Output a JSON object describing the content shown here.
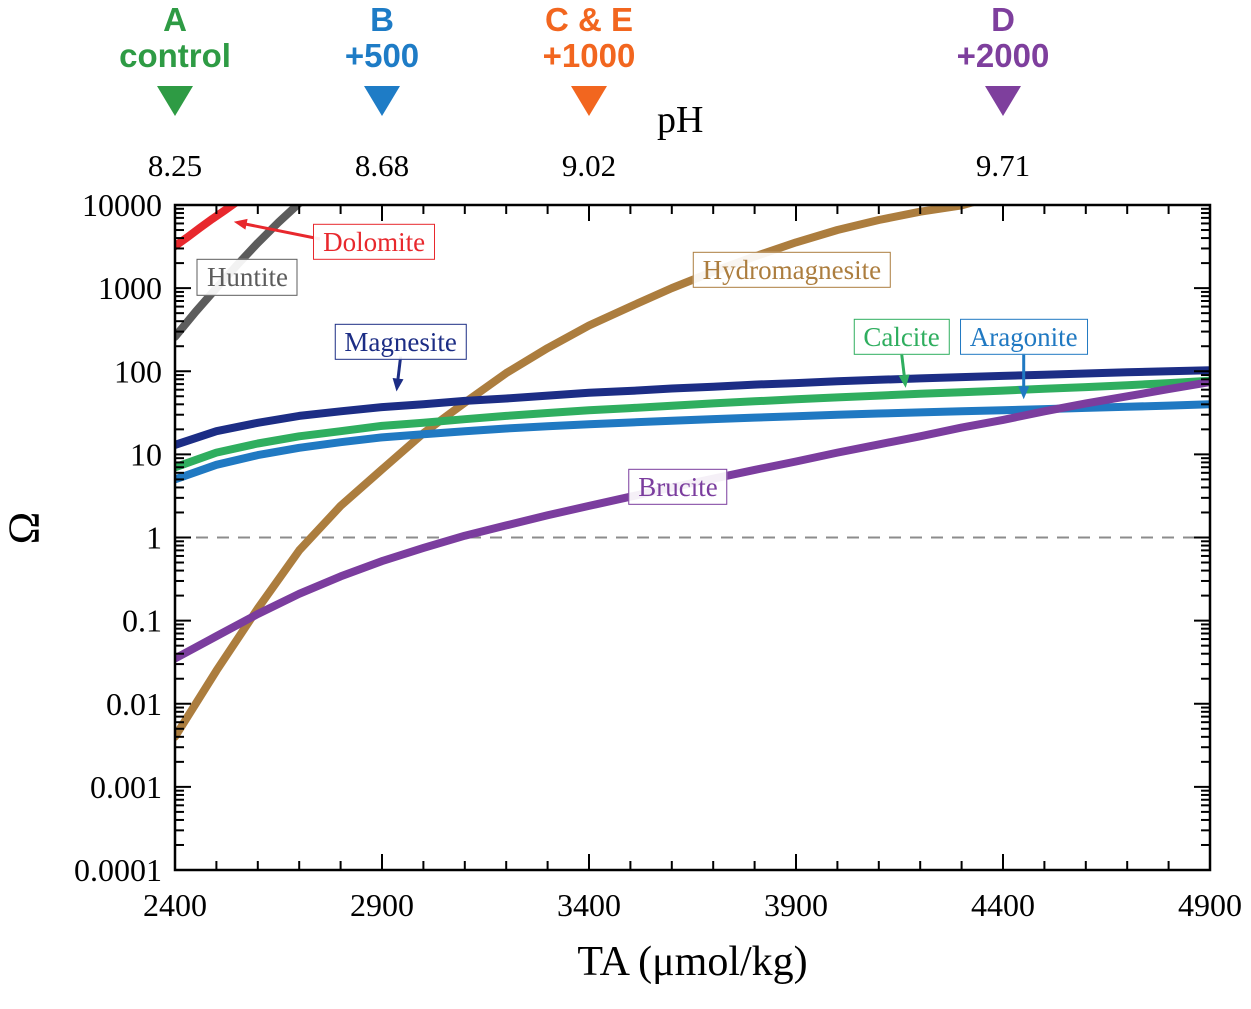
{
  "header": {
    "ph_axis_label": "pH",
    "treatments": [
      {
        "id": "a",
        "line1": "A",
        "line2": "control",
        "ta": 2400,
        "ph": "8.25",
        "color": "#2e9b44"
      },
      {
        "id": "b",
        "line1": "B",
        "line2": "+500",
        "ta": 2900,
        "ph": "8.68",
        "color": "#1e7cc6"
      },
      {
        "id": "ce",
        "line1": "C & E",
        "line2": "+1000",
        "ta": 3400,
        "ph": "9.02",
        "color": "#f2661f"
      },
      {
        "id": "d",
        "line1": "D",
        "line2": "+2000",
        "ta": 4400,
        "ph": "9.71",
        "color": "#7e3f9d"
      }
    ]
  },
  "chart_data": {
    "type": "line",
    "title": "",
    "xlabel": "TA (μmol/kg)",
    "ylabel": "Ω",
    "xlim": [
      2400,
      4900
    ],
    "ylog": [
      -4,
      4
    ],
    "x_major_step": 500,
    "x_minor_step": 100,
    "grid": false,
    "x_ticks": [
      {
        "label": "2400",
        "value": 2400
      },
      {
        "label": "2900",
        "value": 2900
      },
      {
        "label": "3400",
        "value": 3400
      },
      {
        "label": "3900",
        "value": 3900
      },
      {
        "label": "4400",
        "value": 4400
      },
      {
        "label": "4900",
        "value": 4900
      }
    ],
    "y_ticks": [
      {
        "label": "10000",
        "value": 10000
      },
      {
        "label": "1000",
        "value": 1000
      },
      {
        "label": "100",
        "value": 100
      },
      {
        "label": "10",
        "value": 10
      },
      {
        "label": "1",
        "value": 1
      },
      {
        "label": "0.1",
        "value": 0.1
      },
      {
        "label": "0.01",
        "value": 0.01
      },
      {
        "label": "0.001",
        "value": 0.001
      },
      {
        "label": "0.0001",
        "value": 0.0001
      }
    ],
    "reference_line": {
      "y": 1,
      "style": "dashed",
      "color": "#8c8c8c"
    },
    "series": [
      {
        "id": "huntite",
        "name": "Huntite",
        "color": "#5c5c5c",
        "label": {
          "ta": 2575,
          "omega": 1350
        },
        "points": [
          [
            2400,
            260
          ],
          [
            2450,
            520
          ],
          [
            2500,
            1000
          ],
          [
            2550,
            1900
          ],
          [
            2600,
            3500
          ],
          [
            2650,
            6200
          ],
          [
            2700,
            10500
          ],
          [
            2730,
            13000
          ]
        ]
      },
      {
        "id": "dolomite",
        "name": "Dolomite",
        "color": "#e8282d",
        "label": {
          "ta": 2881,
          "omega": 3600
        },
        "arrow": {
          "from": [
            2750,
            3900
          ],
          "to": [
            2542,
            6300
          ]
        },
        "points": [
          [
            2400,
            3200
          ],
          [
            2430,
            4100
          ],
          [
            2460,
            5300
          ],
          [
            2490,
            6800
          ],
          [
            2520,
            8600
          ],
          [
            2550,
            11000
          ]
        ]
      },
      {
        "id": "hydromagnesite",
        "name": "Hydromagnesite",
        "color": "#ac7d3e",
        "label": {
          "ta": 3890,
          "omega": 1650
        },
        "points": [
          [
            2400,
            0.004
          ],
          [
            2500,
            0.025
          ],
          [
            2600,
            0.14
          ],
          [
            2700,
            0.7
          ],
          [
            2800,
            2.4
          ],
          [
            2900,
            6.6
          ],
          [
            3000,
            18
          ],
          [
            3100,
            42
          ],
          [
            3200,
            95
          ],
          [
            3300,
            190
          ],
          [
            3400,
            355
          ],
          [
            3500,
            600
          ],
          [
            3600,
            1000
          ],
          [
            3700,
            1580
          ],
          [
            3800,
            2400
          ],
          [
            3900,
            3550
          ],
          [
            4000,
            5000
          ],
          [
            4100,
            6600
          ],
          [
            4200,
            8300
          ],
          [
            4300,
            9900
          ],
          [
            4360,
            12000
          ]
        ]
      },
      {
        "id": "magnesite",
        "name": "Magnesite",
        "color": "#1c2d85",
        "label": {
          "ta": 2945,
          "omega": 225
        },
        "arrow": {
          "from": [
            2945,
            150
          ],
          "to": [
            2935,
            57
          ]
        },
        "points": [
          [
            2400,
            13
          ],
          [
            2500,
            19
          ],
          [
            2600,
            24
          ],
          [
            2700,
            29
          ],
          [
            2800,
            33
          ],
          [
            2900,
            37
          ],
          [
            3000,
            40
          ],
          [
            3100,
            44
          ],
          [
            3200,
            47
          ],
          [
            3300,
            51
          ],
          [
            3400,
            55
          ],
          [
            3500,
            58
          ],
          [
            3600,
            62
          ],
          [
            3700,
            65
          ],
          [
            3800,
            69
          ],
          [
            3900,
            72
          ],
          [
            4000,
            76
          ],
          [
            4100,
            79
          ],
          [
            4200,
            82
          ],
          [
            4300,
            85
          ],
          [
            4400,
            88
          ],
          [
            4500,
            91
          ],
          [
            4600,
            94
          ],
          [
            4700,
            97
          ],
          [
            4800,
            100
          ],
          [
            4900,
            103
          ]
        ]
      },
      {
        "id": "calcite",
        "name": "Calcite",
        "color": "#2fae5f",
        "label": {
          "ta": 4155,
          "omega": 258
        },
        "arrow": {
          "from": [
            4155,
            165
          ],
          "to": [
            4165,
            63
          ]
        },
        "points": [
          [
            2400,
            7
          ],
          [
            2500,
            10.5
          ],
          [
            2600,
            13.5
          ],
          [
            2700,
            16.5
          ],
          [
            2800,
            19
          ],
          [
            2900,
            22
          ],
          [
            3000,
            24
          ],
          [
            3100,
            26.5
          ],
          [
            3200,
            29
          ],
          [
            3300,
            31.5
          ],
          [
            3400,
            34
          ],
          [
            3500,
            36
          ],
          [
            3600,
            38.5
          ],
          [
            3700,
            41
          ],
          [
            3800,
            43.5
          ],
          [
            3900,
            46
          ],
          [
            4000,
            48.5
          ],
          [
            4100,
            51
          ],
          [
            4200,
            53.5
          ],
          [
            4300,
            56
          ],
          [
            4400,
            58.5
          ],
          [
            4500,
            61.5
          ],
          [
            4600,
            64.5
          ],
          [
            4700,
            68
          ],
          [
            4800,
            72
          ],
          [
            4900,
            77
          ]
        ]
      },
      {
        "id": "aragonite",
        "name": "Aragonite",
        "color": "#2079c2",
        "label": {
          "ta": 4450,
          "omega": 258
        },
        "arrow": {
          "from": [
            4450,
            165
          ],
          "to": [
            4450,
            46
          ]
        },
        "points": [
          [
            2400,
            5
          ],
          [
            2500,
            7.5
          ],
          [
            2600,
            9.8
          ],
          [
            2700,
            12
          ],
          [
            2800,
            14
          ],
          [
            2900,
            16
          ],
          [
            3000,
            17.5
          ],
          [
            3100,
            19
          ],
          [
            3200,
            20.5
          ],
          [
            3300,
            21.8
          ],
          [
            3400,
            23
          ],
          [
            3500,
            24.2
          ],
          [
            3600,
            25.4
          ],
          [
            3700,
            26.6
          ],
          [
            3800,
            27.7
          ],
          [
            3900,
            28.8
          ],
          [
            4000,
            29.9
          ],
          [
            4100,
            31
          ],
          [
            4200,
            32
          ],
          [
            4300,
            33
          ],
          [
            4400,
            34
          ],
          [
            4500,
            35
          ],
          [
            4600,
            36.2
          ],
          [
            4700,
            37.4
          ],
          [
            4800,
            38.6
          ],
          [
            4900,
            40
          ]
        ]
      },
      {
        "id": "brucite",
        "name": "Brucite",
        "color": "#7b3d9e",
        "label": {
          "ta": 3615,
          "omega": 4.05
        },
        "points": [
          [
            2400,
            0.035
          ],
          [
            2500,
            0.065
          ],
          [
            2600,
            0.12
          ],
          [
            2700,
            0.21
          ],
          [
            2800,
            0.34
          ],
          [
            2900,
            0.52
          ],
          [
            3000,
            0.75
          ],
          [
            3100,
            1.05
          ],
          [
            3200,
            1.4
          ],
          [
            3300,
            1.85
          ],
          [
            3400,
            2.4
          ],
          [
            3500,
            3.1
          ],
          [
            3600,
            4.0
          ],
          [
            3700,
            5.1
          ],
          [
            3800,
            6.5
          ],
          [
            3900,
            8.2
          ],
          [
            4000,
            10.5
          ],
          [
            4100,
            13.2
          ],
          [
            4200,
            16.5
          ],
          [
            4300,
            21
          ],
          [
            4400,
            26
          ],
          [
            4500,
            33
          ],
          [
            4600,
            41
          ],
          [
            4700,
            50
          ],
          [
            4800,
            61
          ],
          [
            4900,
            74
          ]
        ]
      }
    ]
  }
}
